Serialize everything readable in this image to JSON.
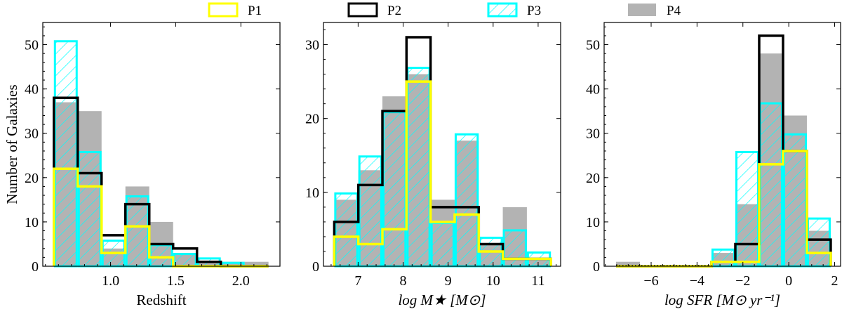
{
  "legend": [
    {
      "name": "P1",
      "style": "step",
      "color": "#ffff00"
    },
    {
      "name": "P2",
      "style": "step",
      "color": "#000000"
    },
    {
      "name": "P3",
      "style": "hatch",
      "color": "#00ffff"
    },
    {
      "name": "P4",
      "style": "filled",
      "color": "#999999"
    }
  ],
  "chart_data": [
    {
      "type": "bar",
      "subtype": "histogram",
      "xlabel": "Redshift",
      "ylabel": "Number of Galaxies",
      "xlim": [
        0.48,
        2.3
      ],
      "ylim": [
        0,
        55
      ],
      "xticks": [
        1.0,
        1.5,
        2.0
      ],
      "xtick_labels": [
        "1.0",
        "1.5",
        "2.0"
      ],
      "yticks": [
        0,
        10,
        20,
        30,
        40,
        50
      ],
      "ytick_labels": [
        "0",
        "10",
        "20",
        "30",
        "40",
        "50"
      ],
      "bin_edges": [
        0.565,
        0.748,
        0.931,
        1.114,
        1.297,
        1.48,
        1.663,
        1.846,
        2.029,
        2.212
      ],
      "series": [
        {
          "name": "P1",
          "values": [
            22,
            18,
            3,
            9,
            2,
            0,
            0,
            0,
            0
          ]
        },
        {
          "name": "P2",
          "values": [
            38,
            21,
            7,
            14,
            5,
            4,
            1,
            0,
            0
          ]
        },
        {
          "name": "P3",
          "values": [
            51,
            26,
            6,
            16,
            5,
            3,
            2,
            1,
            0
          ]
        },
        {
          "name": "P4",
          "values": [
            37,
            35,
            4,
            18,
            10,
            3,
            1,
            1,
            1
          ]
        }
      ]
    },
    {
      "type": "bar",
      "subtype": "histogram",
      "xlabel": "log M★  [M⊙]",
      "ylabel": "",
      "xlim": [
        6.23,
        11.5
      ],
      "ylim": [
        0,
        33
      ],
      "xticks": [
        7,
        8,
        9,
        10,
        11
      ],
      "xtick_labels": [
        "7",
        "8",
        "9",
        "10",
        "11"
      ],
      "yticks": [
        0,
        10,
        20,
        30
      ],
      "ytick_labels": [
        "0",
        "10",
        "20",
        "30"
      ],
      "bin_edges": [
        6.47,
        7.005,
        7.54,
        8.075,
        8.61,
        9.145,
        9.68,
        10.215,
        10.75,
        11.285
      ],
      "series": [
        {
          "name": "P1",
          "values": [
            4,
            3,
            5,
            25,
            6,
            7,
            2,
            1,
            1
          ]
        },
        {
          "name": "P2",
          "values": [
            6,
            11,
            21,
            31,
            8,
            8,
            3,
            1,
            1
          ]
        },
        {
          "name": "P3",
          "values": [
            10,
            15,
            21,
            27,
            6,
            18,
            4,
            5,
            2
          ]
        },
        {
          "name": "P4",
          "values": [
            9,
            13,
            23,
            26,
            9,
            17,
            3,
            8,
            1
          ]
        }
      ]
    },
    {
      "type": "bar",
      "subtype": "histogram",
      "xlabel": "log SFR  [M⊙ yr⁻¹]",
      "ylabel": "",
      "xlim": [
        -8.05,
        2.26
      ],
      "ylim": [
        0,
        55
      ],
      "xticks": [
        -6,
        -4,
        -2,
        0,
        2
      ],
      "xtick_labels": [
        "−6",
        "−4",
        "−2",
        "0",
        "2"
      ],
      "yticks": [
        0,
        10,
        20,
        30,
        40,
        50
      ],
      "ytick_labels": [
        "0",
        "10",
        "20",
        "30",
        "40",
        "50"
      ],
      "bin_edges": [
        -7.53,
        -6.49,
        -5.45,
        -4.41,
        -3.37,
        -2.33,
        -1.29,
        -0.25,
        0.79,
        1.83
      ],
      "series": [
        {
          "name": "P1",
          "values": [
            0,
            0,
            0,
            0,
            1,
            1,
            23,
            26,
            3
          ]
        },
        {
          "name": "P2",
          "values": [
            0,
            0,
            0,
            0,
            1,
            5,
            52,
            26,
            6
          ]
        },
        {
          "name": "P3",
          "values": [
            0,
            0,
            0,
            0,
            4,
            26,
            37,
            30,
            11
          ]
        },
        {
          "name": "P4",
          "values": [
            1,
            0,
            0,
            0,
            3,
            14,
            48,
            34,
            8
          ]
        }
      ]
    }
  ]
}
